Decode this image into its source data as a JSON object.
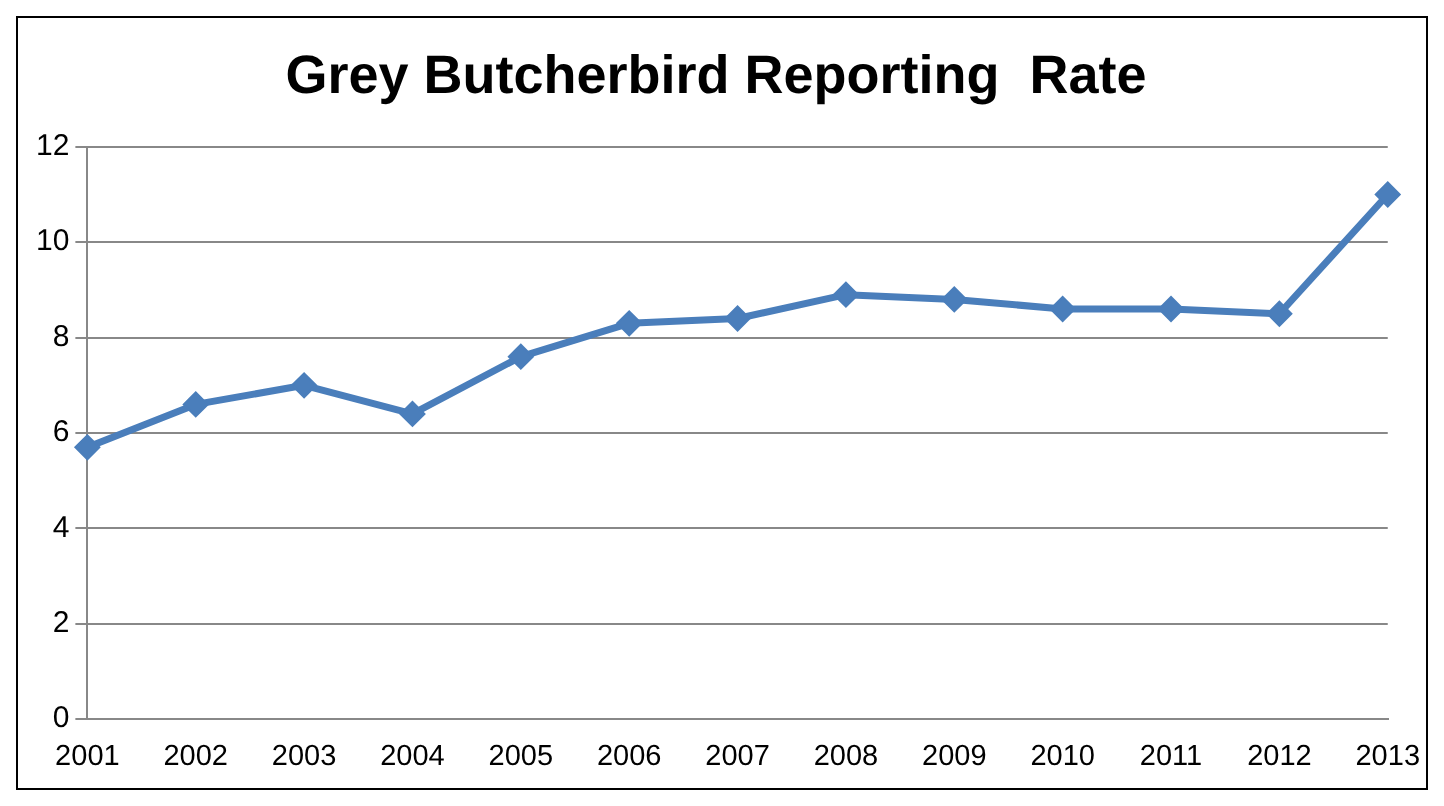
{
  "chart_data": {
    "type": "line",
    "title": "Grey Butcherbird Reporting  Rate",
    "categories": [
      "2001",
      "2002",
      "2003",
      "2004",
      "2005",
      "2006",
      "2007",
      "2008",
      "2009",
      "2010",
      "2011",
      "2012",
      "2013"
    ],
    "series": [
      {
        "color": "#4a7ebb",
        "values": [
          5.7,
          6.6,
          7.0,
          6.4,
          7.6,
          8.3,
          8.4,
          8.9,
          8.8,
          8.6,
          8.6,
          8.5,
          11.0
        ]
      }
    ],
    "ylim": [
      0,
      12
    ],
    "yticks": [
      0,
      2,
      4,
      6,
      8,
      10,
      12
    ],
    "grid": "y",
    "legend": false,
    "marker": "diamond",
    "line_style": "solid"
  }
}
